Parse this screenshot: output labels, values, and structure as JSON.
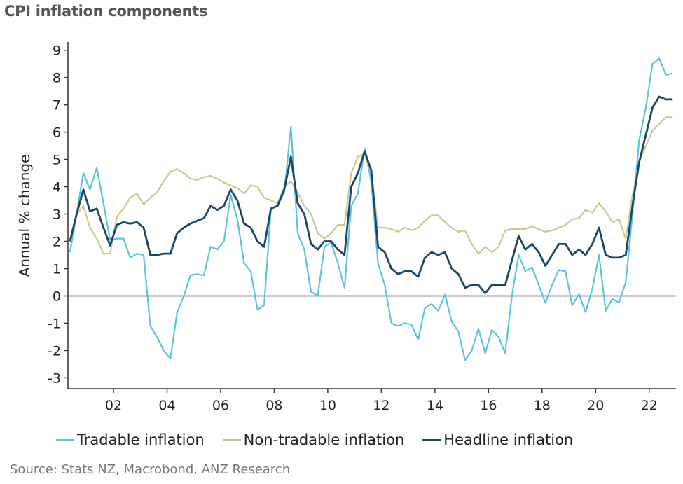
{
  "title": "CPI inflation components",
  "source": "Source: Stats NZ, Macrobond, ANZ Research",
  "chart_data": {
    "type": "line",
    "title": "CPI inflation components",
    "ylabel": "Annual % change",
    "xlabel": "",
    "ylim": [
      -3.4,
      9.3
    ],
    "xlim": [
      2000.3,
      2023.0
    ],
    "grid": false,
    "legend_placement": "bottom",
    "yticks": [
      -3,
      -2,
      -1,
      0,
      1,
      2,
      3,
      4,
      5,
      6,
      7,
      8,
      9
    ],
    "xticks": [
      {
        "year": 2002,
        "label": "02"
      },
      {
        "year": 2004,
        "label": "04"
      },
      {
        "year": 2006,
        "label": "06"
      },
      {
        "year": 2008,
        "label": "08"
      },
      {
        "year": 2010,
        "label": "10"
      },
      {
        "year": 2012,
        "label": "12"
      },
      {
        "year": 2014,
        "label": "14"
      },
      {
        "year": 2016,
        "label": "16"
      },
      {
        "year": 2018,
        "label": "18"
      },
      {
        "year": 2020,
        "label": "20"
      },
      {
        "year": 2022,
        "label": "22"
      }
    ],
    "x": [
      "2000 Q2",
      "2000 Q3",
      "2000 Q4",
      "2001 Q1",
      "2001 Q2",
      "2001 Q3",
      "2001 Q4",
      "2002 Q1",
      "2002 Q2",
      "2002 Q3",
      "2002 Q4",
      "2003 Q1",
      "2003 Q2",
      "2003 Q3",
      "2003 Q4",
      "2004 Q1",
      "2004 Q2",
      "2004 Q3",
      "2004 Q4",
      "2005 Q1",
      "2005 Q2",
      "2005 Q3",
      "2005 Q4",
      "2006 Q1",
      "2006 Q2",
      "2006 Q3",
      "2006 Q4",
      "2007 Q1",
      "2007 Q2",
      "2007 Q3",
      "2007 Q4",
      "2008 Q1",
      "2008 Q2",
      "2008 Q3",
      "2008 Q4",
      "2009 Q1",
      "2009 Q2",
      "2009 Q3",
      "2009 Q4",
      "2010 Q1",
      "2010 Q2",
      "2010 Q3",
      "2010 Q4",
      "2011 Q1",
      "2011 Q2",
      "2011 Q3",
      "2011 Q4",
      "2012 Q1",
      "2012 Q2",
      "2012 Q3",
      "2012 Q4",
      "2013 Q1",
      "2013 Q2",
      "2013 Q3",
      "2013 Q4",
      "2014 Q1",
      "2014 Q2",
      "2014 Q3",
      "2014 Q4",
      "2015 Q1",
      "2015 Q2",
      "2015 Q3",
      "2015 Q4",
      "2016 Q1",
      "2016 Q2",
      "2016 Q3",
      "2016 Q4",
      "2017 Q1",
      "2017 Q2",
      "2017 Q3",
      "2017 Q4",
      "2018 Q1",
      "2018 Q2",
      "2018 Q3",
      "2018 Q4",
      "2019 Q1",
      "2019 Q2",
      "2019 Q3",
      "2019 Q4",
      "2020 Q1",
      "2020 Q2",
      "2020 Q3",
      "2020 Q4",
      "2021 Q1",
      "2021 Q2",
      "2021 Q3",
      "2021 Q4",
      "2022 Q1",
      "2022 Q2",
      "2022 Q3",
      "2022 Q4"
    ],
    "series": [
      {
        "name": "Tradable inflation",
        "color": "#5cc3e4",
        "width": 2.2,
        "values": [
          1.6,
          3.0,
          4.5,
          3.9,
          4.7,
          3.4,
          2.05,
          2.1,
          2.1,
          1.4,
          1.55,
          1.5,
          -1.1,
          -1.5,
          -2.0,
          -2.3,
          -0.6,
          0.0,
          0.75,
          0.8,
          0.75,
          1.8,
          1.7,
          2.0,
          3.7,
          2.8,
          1.2,
          0.9,
          -0.5,
          -0.35,
          3.2,
          3.3,
          3.8,
          6.2,
          2.3,
          1.7,
          0.15,
          0.0,
          1.8,
          1.95,
          1.2,
          0.3,
          3.3,
          3.75,
          5.4,
          4.2,
          1.2,
          0.4,
          -1.0,
          -1.1,
          -1.0,
          -1.05,
          -1.6,
          -0.45,
          -0.3,
          -0.55,
          0.05,
          -0.95,
          -1.3,
          -2.35,
          -2.0,
          -1.2,
          -2.1,
          -1.25,
          -1.5,
          -2.1,
          0.0,
          1.5,
          0.9,
          1.05,
          0.4,
          -0.25,
          0.4,
          0.95,
          0.9,
          -0.35,
          0.07,
          -0.6,
          0.25,
          1.5,
          -0.55,
          -0.1,
          -0.25,
          0.5,
          3.0,
          5.7,
          6.9,
          8.5,
          8.7,
          8.1,
          8.15
        ]
      },
      {
        "name": "Non-tradable inflation",
        "color": "#cbc992",
        "width": 2.2,
        "values": [
          2.0,
          3.0,
          3.3,
          2.5,
          2.1,
          1.55,
          1.55,
          2.9,
          3.2,
          3.6,
          3.75,
          3.35,
          3.6,
          3.8,
          4.2,
          4.55,
          4.65,
          4.5,
          4.3,
          4.25,
          4.35,
          4.4,
          4.3,
          4.15,
          4.05,
          3.95,
          3.75,
          4.05,
          4.0,
          3.6,
          3.5,
          3.4,
          4.0,
          4.2,
          3.8,
          3.3,
          3.0,
          2.3,
          2.1,
          2.3,
          2.6,
          2.6,
          4.5,
          5.1,
          5.2,
          4.5,
          2.5,
          2.5,
          2.45,
          2.35,
          2.5,
          2.4,
          2.5,
          2.75,
          2.95,
          2.95,
          2.7,
          2.5,
          2.35,
          2.4,
          1.9,
          1.55,
          1.8,
          1.6,
          1.8,
          2.4,
          2.45,
          2.45,
          2.45,
          2.55,
          2.45,
          2.35,
          2.4,
          2.5,
          2.6,
          2.8,
          2.85,
          3.15,
          3.05,
          3.4,
          3.1,
          2.7,
          2.8,
          2.1,
          3.7,
          4.9,
          5.5,
          6.05,
          6.3,
          6.55,
          6.55
        ]
      },
      {
        "name": "Headline inflation",
        "color": "#1a4767",
        "width": 2.8,
        "values": [
          2.0,
          3.0,
          3.9,
          3.1,
          3.2,
          2.5,
          1.85,
          2.6,
          2.7,
          2.65,
          2.7,
          2.5,
          1.5,
          1.5,
          1.55,
          1.55,
          2.3,
          2.5,
          2.65,
          2.75,
          2.85,
          3.3,
          3.15,
          3.3,
          3.9,
          3.5,
          2.65,
          2.5,
          2.0,
          1.8,
          3.2,
          3.3,
          3.9,
          5.1,
          3.4,
          3.0,
          1.9,
          1.7,
          2.0,
          2.0,
          1.7,
          1.5,
          4.0,
          4.5,
          5.3,
          4.6,
          1.8,
          1.6,
          1.0,
          0.8,
          0.9,
          0.9,
          0.7,
          1.4,
          1.6,
          1.5,
          1.6,
          1.0,
          0.8,
          0.3,
          0.4,
          0.4,
          0.1,
          0.4,
          0.4,
          0.4,
          1.3,
          2.2,
          1.7,
          1.9,
          1.6,
          1.1,
          1.5,
          1.9,
          1.9,
          1.5,
          1.7,
          1.5,
          1.9,
          2.5,
          1.5,
          1.4,
          1.4,
          1.5,
          3.3,
          4.9,
          5.9,
          6.9,
          7.3,
          7.2,
          7.2
        ]
      }
    ]
  }
}
